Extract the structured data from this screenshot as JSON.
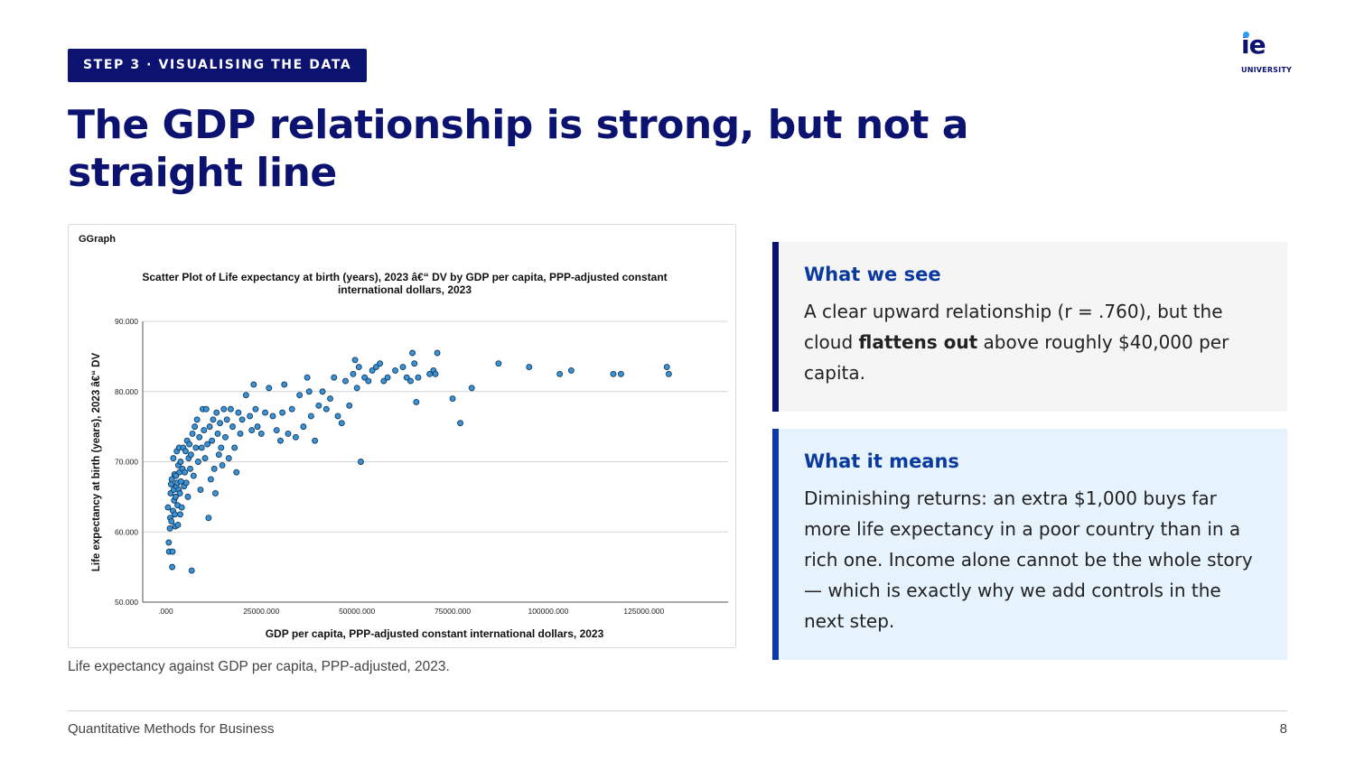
{
  "badge": "STEP 3 · VISUALISING THE DATA",
  "logo": {
    "mark": "ie",
    "sub": "UNIVERSITY"
  },
  "title": "The GDP relationship is strong, but not a straight line",
  "caption": "Life expectancy against GDP per capita, PPP-adjusted, 2023.",
  "card1": {
    "heading": "What we see",
    "pre": "A clear upward relationship (r = .760), but the cloud ",
    "bold": "flattens out",
    "post": " above roughly $40,000 per capita."
  },
  "card2": {
    "heading": "What it means",
    "text": "Diminishing returns: an extra $1,000 buys far more life expectancy in a poor country than in a rich one. Income alone cannot be the whole story — which is exactly why we add controls in the next step."
  },
  "footer": {
    "left": "Quantitative Methods for Business",
    "page": "8"
  },
  "colors": {
    "navy": "#0b1270",
    "accent_blue": "#0b3a9e",
    "point_fill": "#3a93d6",
    "card2_bg": "#e6f3fd"
  },
  "chart_data": {
    "type": "scatter",
    "panel_label": "GGraph",
    "title_line1": "Scatter Plot of Life expectancy at birth (years), 2023 â€“ DV by GDP per capita, PPP-adjusted constant",
    "title_line2": "international dollars, 2023",
    "xlabel": "GDP per capita, PPP-adjusted constant international dollars, 2023",
    "ylabel": "Life expectancy at birth (years), 2023 â€“ DV",
    "xlim": [
      -6000,
      147000
    ],
    "ylim": [
      50,
      90
    ],
    "xticks": [
      0,
      25000,
      50000,
      75000,
      100000,
      125000
    ],
    "xtick_labels": [
      ".000",
      "25000.000",
      "50000.000",
      "75000.000",
      "100000.000",
      "125000.000"
    ],
    "yticks": [
      50,
      60,
      70,
      80,
      90
    ],
    "ytick_labels": [
      "50.000",
      "60.000",
      "70.000",
      "80.000",
      "90.000"
    ],
    "grid": "horizontal",
    "points": [
      [
        600,
        63.5
      ],
      [
        800,
        58.5
      ],
      [
        900,
        57.2
      ],
      [
        1100,
        60.5
      ],
      [
        1200,
        62
      ],
      [
        1300,
        65.5
      ],
      [
        1400,
        66.8
      ],
      [
        1500,
        61.5
      ],
      [
        1600,
        67.5
      ],
      [
        1700,
        55
      ],
      [
        1800,
        57.2
      ],
      [
        1900,
        63
      ],
      [
        2000,
        70.5
      ],
      [
        2100,
        66
      ],
      [
        2200,
        64.5
      ],
      [
        2300,
        68.2
      ],
      [
        2400,
        62.5
      ],
      [
        2500,
        60.8
      ],
      [
        2600,
        65
      ],
      [
        2700,
        68
      ],
      [
        2800,
        66.5
      ],
      [
        2900,
        71.5
      ],
      [
        3000,
        67
      ],
      [
        3100,
        63.8
      ],
      [
        3200,
        61
      ],
      [
        3300,
        69.5
      ],
      [
        3400,
        66
      ],
      [
        3500,
        72
      ],
      [
        3600,
        68.5
      ],
      [
        3700,
        65.5
      ],
      [
        3800,
        62.5
      ],
      [
        3900,
        70
      ],
      [
        4000,
        67.2
      ],
      [
        4200,
        63.5
      ],
      [
        4400,
        69
      ],
      [
        4600,
        72
      ],
      [
        4800,
        66.5
      ],
      [
        5000,
        68.5
      ],
      [
        5200,
        71.5
      ],
      [
        5400,
        67
      ],
      [
        5600,
        73
      ],
      [
        5800,
        65
      ],
      [
        6000,
        70.5
      ],
      [
        6200,
        72.5
      ],
      [
        6400,
        69
      ],
      [
        6600,
        71
      ],
      [
        6800,
        54.5
      ],
      [
        7000,
        74
      ],
      [
        7300,
        68
      ],
      [
        7600,
        75
      ],
      [
        7900,
        72
      ],
      [
        8200,
        76
      ],
      [
        8500,
        70
      ],
      [
        8800,
        73.5
      ],
      [
        9100,
        66
      ],
      [
        9400,
        72
      ],
      [
        9700,
        77.5
      ],
      [
        10000,
        74.5
      ],
      [
        10300,
        70.5
      ],
      [
        10600,
        77.5
      ],
      [
        10900,
        72.5
      ],
      [
        11200,
        62
      ],
      [
        11500,
        75
      ],
      [
        11800,
        67.5
      ],
      [
        12100,
        73
      ],
      [
        12400,
        76
      ],
      [
        12700,
        69
      ],
      [
        13000,
        65.5
      ],
      [
        13300,
        77
      ],
      [
        13600,
        74
      ],
      [
        13900,
        71
      ],
      [
        14200,
        75.5
      ],
      [
        14500,
        72
      ],
      [
        14800,
        69.5
      ],
      [
        15200,
        77.5
      ],
      [
        15600,
        73.5
      ],
      [
        16000,
        76
      ],
      [
        16500,
        70.5
      ],
      [
        17000,
        77.5
      ],
      [
        17500,
        75
      ],
      [
        18000,
        72
      ],
      [
        18500,
        68.5
      ],
      [
        19000,
        77
      ],
      [
        19500,
        74
      ],
      [
        20000,
        76
      ],
      [
        21000,
        79.5
      ],
      [
        22000,
        76.5
      ],
      [
        22500,
        74.5
      ],
      [
        23000,
        81
      ],
      [
        23500,
        77.5
      ],
      [
        24000,
        75
      ],
      [
        25000,
        74
      ],
      [
        26000,
        77
      ],
      [
        27000,
        80.5
      ],
      [
        28000,
        76.5
      ],
      [
        29000,
        74.5
      ],
      [
        30000,
        73
      ],
      [
        30500,
        77
      ],
      [
        31000,
        81
      ],
      [
        32000,
        74
      ],
      [
        33000,
        77.5
      ],
      [
        34000,
        73.5
      ],
      [
        35000,
        79.5
      ],
      [
        36000,
        75
      ],
      [
        37000,
        82
      ],
      [
        37500,
        80
      ],
      [
        38000,
        76.5
      ],
      [
        39000,
        73
      ],
      [
        40000,
        78
      ],
      [
        41000,
        80
      ],
      [
        42000,
        77.5
      ],
      [
        43000,
        79
      ],
      [
        44000,
        82
      ],
      [
        45000,
        76.5
      ],
      [
        46000,
        75.5
      ],
      [
        47000,
        81.5
      ],
      [
        48000,
        78
      ],
      [
        49000,
        82.5
      ],
      [
        49500,
        84.5
      ],
      [
        50000,
        80.5
      ],
      [
        50500,
        83.5
      ],
      [
        51000,
        70
      ],
      [
        52000,
        82
      ],
      [
        53000,
        81.5
      ],
      [
        54000,
        83
      ],
      [
        55000,
        83.5
      ],
      [
        56000,
        84
      ],
      [
        57000,
        81.5
      ],
      [
        58000,
        82
      ],
      [
        60000,
        83
      ],
      [
        62000,
        83.5
      ],
      [
        63000,
        82
      ],
      [
        64000,
        81.5
      ],
      [
        64500,
        85.5
      ],
      [
        65000,
        84
      ],
      [
        65500,
        78.5
      ],
      [
        66000,
        82
      ],
      [
        69000,
        82.5
      ],
      [
        70000,
        83
      ],
      [
        70500,
        82.5
      ],
      [
        71000,
        85.5
      ],
      [
        75000,
        79
      ],
      [
        77000,
        75.5
      ],
      [
        80000,
        80.5
      ],
      [
        87000,
        84
      ],
      [
        95000,
        83.5
      ],
      [
        103000,
        82.5
      ],
      [
        106000,
        83
      ],
      [
        117000,
        82.5
      ],
      [
        119000,
        82.5
      ],
      [
        131000,
        83.5
      ],
      [
        131500,
        82.5
      ]
    ]
  }
}
